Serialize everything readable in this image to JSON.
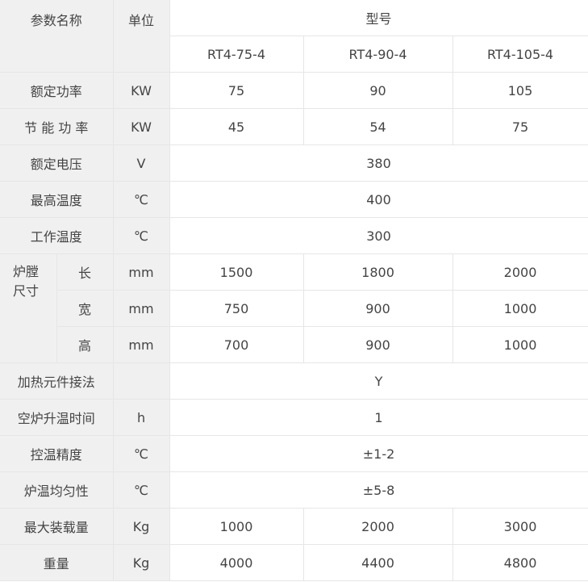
{
  "header": {
    "param_name": "参数名称",
    "unit": "单位",
    "model": "型号",
    "models": [
      "RT4-75-4",
      "RT4-90-4",
      "RT4-105-4"
    ]
  },
  "rows": [
    {
      "name": "额定功率",
      "unit": "KW",
      "values": [
        "75",
        "90",
        "105"
      ]
    },
    {
      "name": "节 能 功 率",
      "unit": "KW",
      "values": [
        "45",
        "54",
        "75"
      ]
    },
    {
      "name": "额定电压",
      "unit": "V",
      "value": "380"
    },
    {
      "name": "最高温度",
      "unit": "℃",
      "value": "400"
    },
    {
      "name": "工作温度",
      "unit": "℃",
      "value": "300"
    }
  ],
  "chamber": {
    "group": "炉膛尺寸",
    "rows": [
      {
        "name": "长",
        "unit": "mm",
        "values": [
          "1500",
          "1800",
          "2000"
        ]
      },
      {
        "name": "宽",
        "unit": "mm",
        "values": [
          "750",
          "900",
          "1000"
        ]
      },
      {
        "name": "高",
        "unit": "mm",
        "values": [
          "700",
          "900",
          "1000"
        ]
      }
    ]
  },
  "rows2": [
    {
      "name": "加热元件接法",
      "unit": "",
      "value": "Y"
    },
    {
      "name": "空炉升温时间",
      "unit": "h",
      "value": "1"
    },
    {
      "name": "控温精度",
      "unit": "℃",
      "value": "±1-2"
    },
    {
      "name": "炉温均匀性",
      "unit": "℃",
      "value": "±5-8"
    },
    {
      "name": "最大装载量",
      "unit": "Kg",
      "values": [
        "1000",
        "2000",
        "3000"
      ]
    },
    {
      "name": "重量",
      "unit": "Kg",
      "values": [
        "4000",
        "4400",
        "4800"
      ]
    }
  ]
}
